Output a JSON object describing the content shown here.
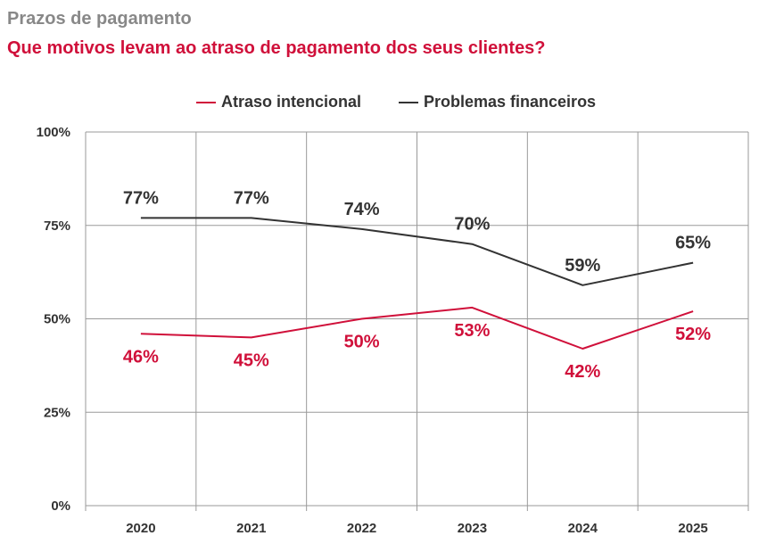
{
  "header": {
    "kicker": "Prazos de pagamento",
    "headline": "Que motivos levam ao atraso de pagamento dos seus clientes?"
  },
  "colors": {
    "red": "#d0103a",
    "dark": "#333333",
    "grid": "#9a9a9a"
  },
  "chart_data": {
    "type": "line",
    "x": [
      "2020",
      "2021",
      "2022",
      "2023",
      "2024",
      "2025"
    ],
    "series": [
      {
        "name": "Atraso intencional",
        "color": "#d0103a",
        "values": [
          46,
          45,
          50,
          53,
          42,
          52
        ],
        "labels": [
          "46%",
          "45%",
          "50%",
          "53%",
          "42%",
          "52%"
        ]
      },
      {
        "name": "Problemas financeiros",
        "color": "#333333",
        "values": [
          77,
          77,
          74,
          70,
          59,
          65
        ],
        "labels": [
          "77%",
          "77%",
          "74%",
          "70%",
          "59%",
          "65%"
        ]
      }
    ],
    "ylim": [
      0,
      100
    ],
    "yticks": [
      0,
      25,
      50,
      75,
      100
    ],
    "ytick_labels": [
      "0%",
      "25%",
      "50%",
      "75%",
      "100%"
    ],
    "grid": true,
    "legend_position": "top-center"
  }
}
